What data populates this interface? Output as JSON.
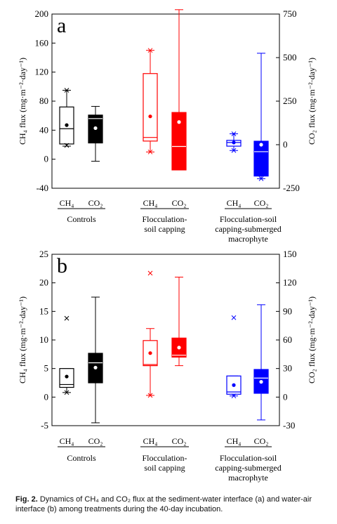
{
  "caption": {
    "label": "Fig. 2.",
    "text": "Dynamics of CH₄ and CO₂ flux at the sediment-water interface (a) and water-air interface (b) among treatments during the 40-day incubation."
  },
  "colors": {
    "controls": "#000000",
    "flocculation": "#ff0000",
    "submerged": "#0000ff"
  },
  "chart_data": [
    {
      "type": "box",
      "panel_label": "a",
      "ylabel": "CH₄ flux (mg·m⁻²·day⁻¹)",
      "y2label": "CO₂ flux (mg·m⁻²·day⁻¹)",
      "ylim": [
        -40,
        200
      ],
      "y2lim": [
        -250,
        750
      ],
      "yticks": [
        -40,
        0,
        40,
        80,
        120,
        160,
        200
      ],
      "y2ticks": [
        -250,
        0,
        250,
        500,
        750
      ],
      "groups": [
        {
          "name": "Controls",
          "color": "#000000"
        },
        {
          "name": "Flocculation-\nsoil capping",
          "color": "#ff0000"
        },
        {
          "name": "Flocculation-soil\ncapping-submerged\nmacrophyte",
          "color": "#0000ff"
        }
      ],
      "box_labels": [
        "CH₄",
        "CO₂"
      ],
      "boxes": [
        {
          "group": 0,
          "gas": "CH4",
          "filled": false,
          "axis": "left",
          "whisker_low": 18,
          "q1": 21,
          "median": 42,
          "q3": 72,
          "whisker_high": 95,
          "mean": 47,
          "outliers": [
            95,
            19
          ]
        },
        {
          "group": 0,
          "gas": "CO2",
          "filled": true,
          "axis": "right",
          "whisker_low": -95,
          "q1": 10,
          "median": 150,
          "q3": 170,
          "whisker_high": 220,
          "mean": 95,
          "outliers": []
        },
        {
          "group": 1,
          "gas": "CH4",
          "filled": false,
          "axis": "left",
          "whisker_low": 10,
          "q1": 25,
          "median": 30,
          "q3": 118,
          "whisker_high": 150,
          "mean": 59,
          "outliers": [
            150,
            10
          ]
        },
        {
          "group": 1,
          "gas": "CO2",
          "filled": true,
          "axis": "right",
          "whisker_low": -145,
          "q1": -145,
          "median": -10,
          "q3": 185,
          "whisker_high": 775,
          "mean": 130,
          "outliers": []
        },
        {
          "group": 2,
          "gas": "CH4",
          "filled": false,
          "axis": "left",
          "whisker_low": 12,
          "q1": 18,
          "median": 23,
          "q3": 26,
          "whisker_high": 35,
          "mean": 23,
          "outliers": [
            35,
            12
          ]
        },
        {
          "group": 2,
          "gas": "CO2",
          "filled": true,
          "axis": "right",
          "whisker_low": -195,
          "q1": -180,
          "median": -40,
          "q3": 20,
          "whisker_high": 525,
          "mean": 0,
          "outliers": [
            -195
          ]
        }
      ]
    },
    {
      "type": "box",
      "panel_label": "b",
      "ylabel": "CH₄ flux (mg·m⁻²·day⁻¹)",
      "y2label": "CO₂ flux (mg·m⁻²·day⁻¹)",
      "ylim": [
        -5,
        25
      ],
      "y2lim": [
        -30,
        150
      ],
      "yticks": [
        -5,
        0,
        5,
        10,
        15,
        20,
        25
      ],
      "y2ticks": [
        -30,
        0,
        30,
        60,
        90,
        120,
        150
      ],
      "groups": [
        {
          "name": "Controls",
          "color": "#000000"
        },
        {
          "name": "Flocculation-\nsoil capping",
          "color": "#ff0000"
        },
        {
          "name": "Flocculation-soil\ncapping-submerged\nmacrophyte",
          "color": "#0000ff"
        }
      ],
      "box_labels": [
        "CH₄",
        "CO₂"
      ],
      "boxes": [
        {
          "group": 0,
          "gas": "CH4",
          "filled": false,
          "axis": "left",
          "whisker_low": 0.8,
          "q1": 1.7,
          "median": 2.2,
          "q3": 5.0,
          "whisker_high": 5.0,
          "mean": 3.6,
          "outliers": [
            13.8,
            0.8
          ]
        },
        {
          "group": 0,
          "gas": "CO2",
          "filled": true,
          "axis": "right",
          "whisker_low": -27,
          "q1": 15,
          "median": 36,
          "q3": 46,
          "whisker_high": 105,
          "mean": 31,
          "outliers": []
        },
        {
          "group": 1,
          "gas": "CH4",
          "filled": false,
          "axis": "left",
          "whisker_low": 0.3,
          "q1": 5.5,
          "median": 5.7,
          "q3": 9.9,
          "whisker_high": 12.0,
          "mean": 7.7,
          "outliers": [
            21.7,
            0.3
          ]
        },
        {
          "group": 1,
          "gas": "CO2",
          "filled": true,
          "axis": "right",
          "whisker_low": 33,
          "q1": 42,
          "median": 44,
          "q3": 62,
          "whisker_high": 126,
          "mean": 52,
          "outliers": []
        },
        {
          "group": 2,
          "gas": "CH4",
          "filled": false,
          "axis": "left",
          "whisker_low": 0.2,
          "q1": 0.5,
          "median": 0.9,
          "q3": 3.7,
          "whisker_high": 3.7,
          "mean": 2.1,
          "outliers": [
            13.9,
            0.2
          ]
        },
        {
          "group": 2,
          "gas": "CO2",
          "filled": true,
          "axis": "right",
          "whisker_low": -24,
          "q1": 4,
          "median": 20,
          "q3": 29,
          "whisker_high": 97,
          "mean": 16,
          "outliers": []
        }
      ]
    }
  ]
}
